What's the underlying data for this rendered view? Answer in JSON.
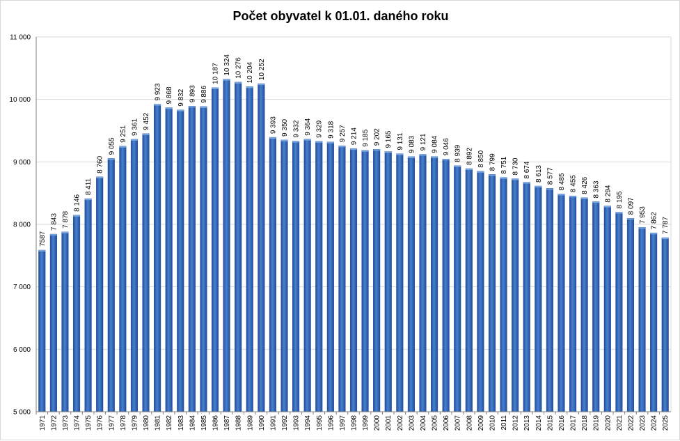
{
  "chart_data": {
    "type": "bar",
    "title": "Počet obyvatel k 01.01. daného roku",
    "xlabel": "",
    "ylabel": "",
    "ylim": [
      5000,
      11000
    ],
    "yticks": [
      5000,
      6000,
      7000,
      8000,
      9000,
      10000,
      11000
    ],
    "ytick_labels": [
      "5 000",
      "6 000",
      "7 000",
      "8 000",
      "9 000",
      "10 000",
      "11 000"
    ],
    "grid": true,
    "legend": "none",
    "bar_color": "#3a6fbf",
    "bar_color_dark": "#1f4e9a",
    "grid_color": "#d9d9d9",
    "categories": [
      "1971",
      "1972",
      "1973",
      "1974",
      "1975",
      "1976",
      "1977",
      "1978",
      "1979",
      "1980",
      "1981",
      "1982",
      "1983",
      "1984",
      "1985",
      "1986",
      "1987",
      "1988",
      "1989",
      "1990",
      "1991",
      "1992",
      "1993",
      "1994",
      "1995",
      "1996",
      "1997",
      "1998",
      "1999",
      "2000",
      "2001",
      "2002",
      "2003",
      "2004",
      "2005",
      "2006",
      "2007",
      "2008",
      "2009",
      "2010",
      "2011",
      "2012",
      "2013",
      "2014",
      "2015",
      "2016",
      "2017",
      "2018",
      "2019",
      "2020",
      "2021",
      "2022",
      "2023",
      "2024",
      "2025"
    ],
    "values": [
      7587,
      7843,
      7878,
      8146,
      8411,
      8760,
      9055,
      9251,
      9361,
      9452,
      9923,
      9868,
      9832,
      9893,
      9886,
      10187,
      10324,
      10276,
      10204,
      10252,
      9393,
      9350,
      9332,
      9364,
      9329,
      9318,
      9257,
      9214,
      9185,
      9202,
      9165,
      9131,
      9083,
      9121,
      9084,
      9046,
      8939,
      8892,
      8850,
      8799,
      8751,
      8730,
      8674,
      8613,
      8577,
      8485,
      8455,
      8426,
      8363,
      8294,
      8195,
      8097,
      7953,
      7862,
      7787
    ],
    "data_labels": [
      "7587",
      "7 843",
      "7 878",
      "8 146",
      "8 411",
      "8 760",
      "9 055",
      "9 251",
      "9 361",
      "9 452",
      "9 923",
      "9 868",
      "9 832",
      "9 893",
      "9 886",
      "10 187",
      "10 324",
      "10 276",
      "10 204",
      "10 252",
      "9 393",
      "9 350",
      "9 332",
      "9 364",
      "9 329",
      "9 318",
      "9 257",
      "9 214",
      "9 185",
      "9 202",
      "9 165",
      "9 131",
      "9 083",
      "9 121",
      "9 084",
      "9 046",
      "8 939",
      "8 892",
      "8 850",
      "8 799",
      "8 751",
      "8 730",
      "8 674",
      "8 613",
      "8 577",
      "8 485",
      "8 455",
      "8 426",
      "8 363",
      "8 294",
      "8 195",
      "8 097",
      "7 953",
      "7 862",
      "7 787"
    ]
  }
}
